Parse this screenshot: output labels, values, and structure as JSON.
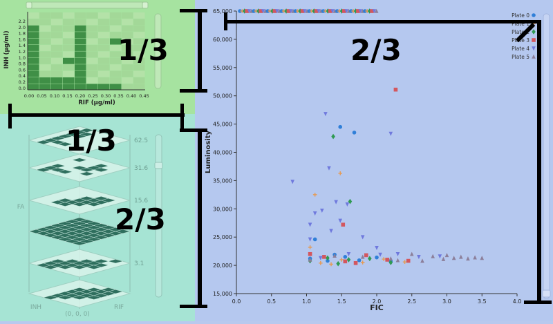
{
  "heatmap": {
    "xlabel": "RIF (μg/ml)",
    "ylabel": "INH (μg/ml)",
    "xticks": [
      "0.00",
      "0.05",
      "0.10",
      "0.15",
      "0.20",
      "0.25",
      "0.30",
      "0.35",
      "0.40",
      "0.45"
    ],
    "yticks": [
      "2.2",
      "2.0",
      "1.8",
      "1.6",
      "1.4",
      "1.2",
      "1.0",
      "0.8",
      "0.6",
      "0.4",
      "0.2",
      "0.0"
    ]
  },
  "stack": {
    "axis_label_left": "FA",
    "axis_label_inh": "INH",
    "axis_label_rif": "RIF",
    "origin_label": "(0, 0, 0)",
    "layer_labels": [
      "62.5",
      "31.6",
      "15.6",
      "",
      "3.1",
      ""
    ]
  },
  "chart_data": {
    "type": "scatter",
    "xlabel": "FIC",
    "ylabel": "Luminosity",
    "xlim": [
      0,
      4
    ],
    "ylim": [
      15000,
      65000
    ],
    "xticks": [
      "0.0",
      "0.5",
      "1.0",
      "1.5",
      "2.0",
      "2.5",
      "3.0",
      "3.5",
      "4.0"
    ],
    "yticks": [
      "15,000",
      "20,000",
      "25,000",
      "30,000",
      "35,000",
      "40,000",
      "45,000",
      "50,000",
      "55,000",
      "60,000",
      "65,000"
    ],
    "legend_position": "top-right",
    "series": [
      {
        "name": "Plate 0",
        "color": "#2f7fd8",
        "shape": "circle",
        "points": [
          [
            1.48,
            44500
          ],
          [
            1.68,
            43500
          ],
          [
            1.12,
            24600
          ],
          [
            1.05,
            21200
          ],
          [
            1.3,
            20800
          ],
          [
            1.55,
            21500
          ],
          [
            1.75,
            20900
          ],
          [
            2.0,
            21400
          ],
          [
            2.2,
            20700
          ],
          [
            1.4,
            21900
          ]
        ]
      },
      {
        "name": "Plate 1",
        "color": "#e69a52",
        "shape": "plus",
        "points": [
          [
            1.12,
            32500
          ],
          [
            1.48,
            36300
          ],
          [
            1.05,
            23200
          ],
          [
            1.2,
            20400
          ],
          [
            1.5,
            21000
          ],
          [
            1.8,
            20500
          ],
          [
            2.1,
            21100
          ],
          [
            2.4,
            20600
          ],
          [
            1.35,
            20200
          ]
        ]
      },
      {
        "name": "Plate 2",
        "color": "#2e9a52",
        "shape": "diamond",
        "points": [
          [
            1.38,
            42800
          ],
          [
            1.62,
            31300
          ],
          [
            1.05,
            20800
          ],
          [
            1.3,
            21300
          ],
          [
            1.6,
            21000
          ],
          [
            1.9,
            21200
          ],
          [
            2.2,
            20500
          ],
          [
            1.45,
            20300
          ]
        ]
      },
      {
        "name": "Plate 3",
        "color": "#d3575f",
        "shape": "square",
        "points": [
          [
            2.27,
            51100
          ],
          [
            1.52,
            27200
          ],
          [
            1.05,
            22000
          ],
          [
            1.25,
            21500
          ],
          [
            1.55,
            20700
          ],
          [
            1.85,
            21800
          ],
          [
            2.15,
            21000
          ],
          [
            2.45,
            20800
          ],
          [
            1.7,
            20400
          ]
        ]
      },
      {
        "name": "Plate 4",
        "color": "#6f79dd",
        "shape": "tri-down",
        "points": [
          [
            0.8,
            34800
          ],
          [
            1.27,
            46800
          ],
          [
            2.2,
            43300
          ],
          [
            1.32,
            37200
          ],
          [
            1.05,
            27200
          ],
          [
            1.12,
            29200
          ],
          [
            1.22,
            29700
          ],
          [
            1.42,
            31200
          ],
          [
            1.48,
            27900
          ],
          [
            1.58,
            30800
          ],
          [
            1.35,
            26100
          ],
          [
            1.8,
            25000
          ],
          [
            2.0,
            23100
          ],
          [
            1.05,
            24600
          ],
          [
            2.05,
            21900
          ],
          [
            2.3,
            22000
          ],
          [
            2.6,
            21500
          ],
          [
            2.9,
            21600
          ],
          [
            1.2,
            21300
          ],
          [
            1.6,
            22000
          ]
        ]
      },
      {
        "name": "Plate 5",
        "color": "#8c7f9a",
        "shape": "triangle",
        "points": [
          [
            1.05,
            21000
          ],
          [
            1.4,
            21700
          ],
          [
            1.8,
            21500
          ],
          [
            2.2,
            21200
          ],
          [
            2.5,
            22000
          ],
          [
            2.8,
            21600
          ],
          [
            3.0,
            21800
          ],
          [
            3.1,
            21300
          ],
          [
            3.2,
            21500
          ],
          [
            3.3,
            21200
          ],
          [
            3.4,
            21400
          ],
          [
            3.5,
            21300
          ],
          [
            2.65,
            20800
          ],
          [
            2.95,
            21100
          ],
          [
            2.3,
            20900
          ]
        ]
      }
    ]
  },
  "annotations": {
    "heat_fraction": "1/3",
    "stack_top_fraction": "1/3",
    "stack_bottom_fraction": "2/3",
    "scatter_fraction": "2/3"
  }
}
